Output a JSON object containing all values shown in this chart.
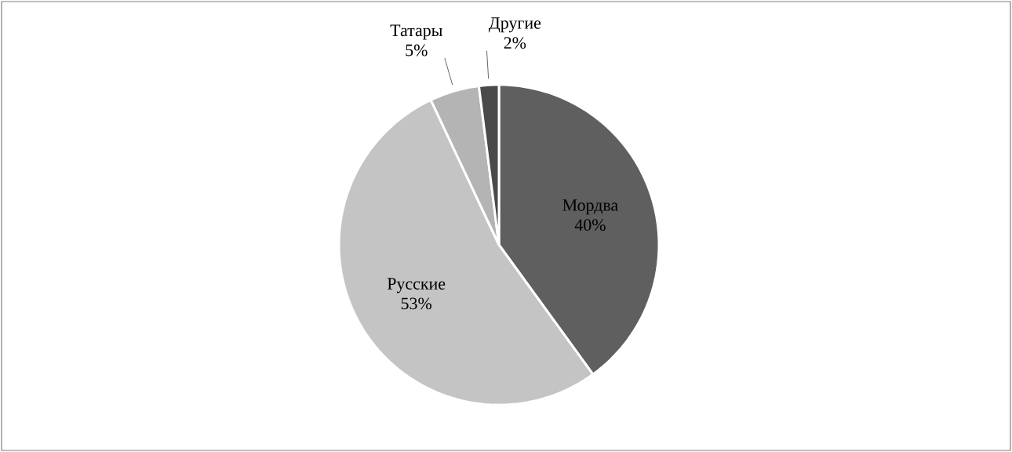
{
  "chart_data": {
    "type": "pie",
    "categories": [
      "Мордва",
      "Русские",
      "Татары",
      "Другие"
    ],
    "values": [
      40,
      53,
      5,
      2
    ],
    "value_labels": [
      "40%",
      "53%",
      "5%",
      "2%"
    ],
    "colors": [
      "#5f5f5f",
      "#c4c4c4",
      "#b4b4b4",
      "#4a4a4a"
    ]
  }
}
